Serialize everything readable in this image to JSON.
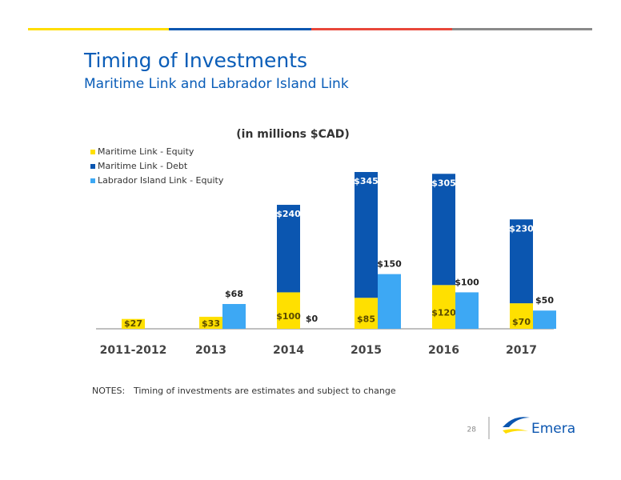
{
  "header": {
    "title": "Timing of Investments",
    "subtitle": "Maritime Link and Labrador Island Link"
  },
  "chart_data": {
    "type": "stacked-bar",
    "title": "(in millions $CAD)",
    "categories": [
      "2011-2012",
      "2013",
      "2014",
      "2015",
      "2016",
      "2017"
    ],
    "series": [
      {
        "name": "Maritime Link - Equity",
        "color": "#ffe000",
        "stack": "maritime",
        "values": [
          27,
          33,
          100,
          85,
          120,
          70
        ],
        "value_labels": [
          "$27",
          "$33",
          "$100",
          "$85",
          "$120",
          "$70"
        ]
      },
      {
        "name": "Maritime Link - Debt",
        "color": "#0b56b0",
        "stack": "maritime",
        "values": [
          null,
          null,
          240,
          345,
          305,
          230
        ],
        "value_labels": [
          null,
          null,
          "$240",
          "$345",
          "$305",
          "$230"
        ]
      },
      {
        "name": "Labrador Island Link - Equity",
        "color": "#3da8f4",
        "stack": "labrador",
        "values": [
          null,
          68,
          0,
          150,
          100,
          50
        ],
        "value_labels": [
          null,
          "$68",
          "$0",
          "$150",
          "$100",
          "$50"
        ]
      }
    ],
    "legend": "top-left"
  },
  "notes": {
    "label": "NOTES:",
    "text": "Timing of investments are estimates and subject to change"
  },
  "footer": {
    "page": "28",
    "logo": "Emera"
  }
}
